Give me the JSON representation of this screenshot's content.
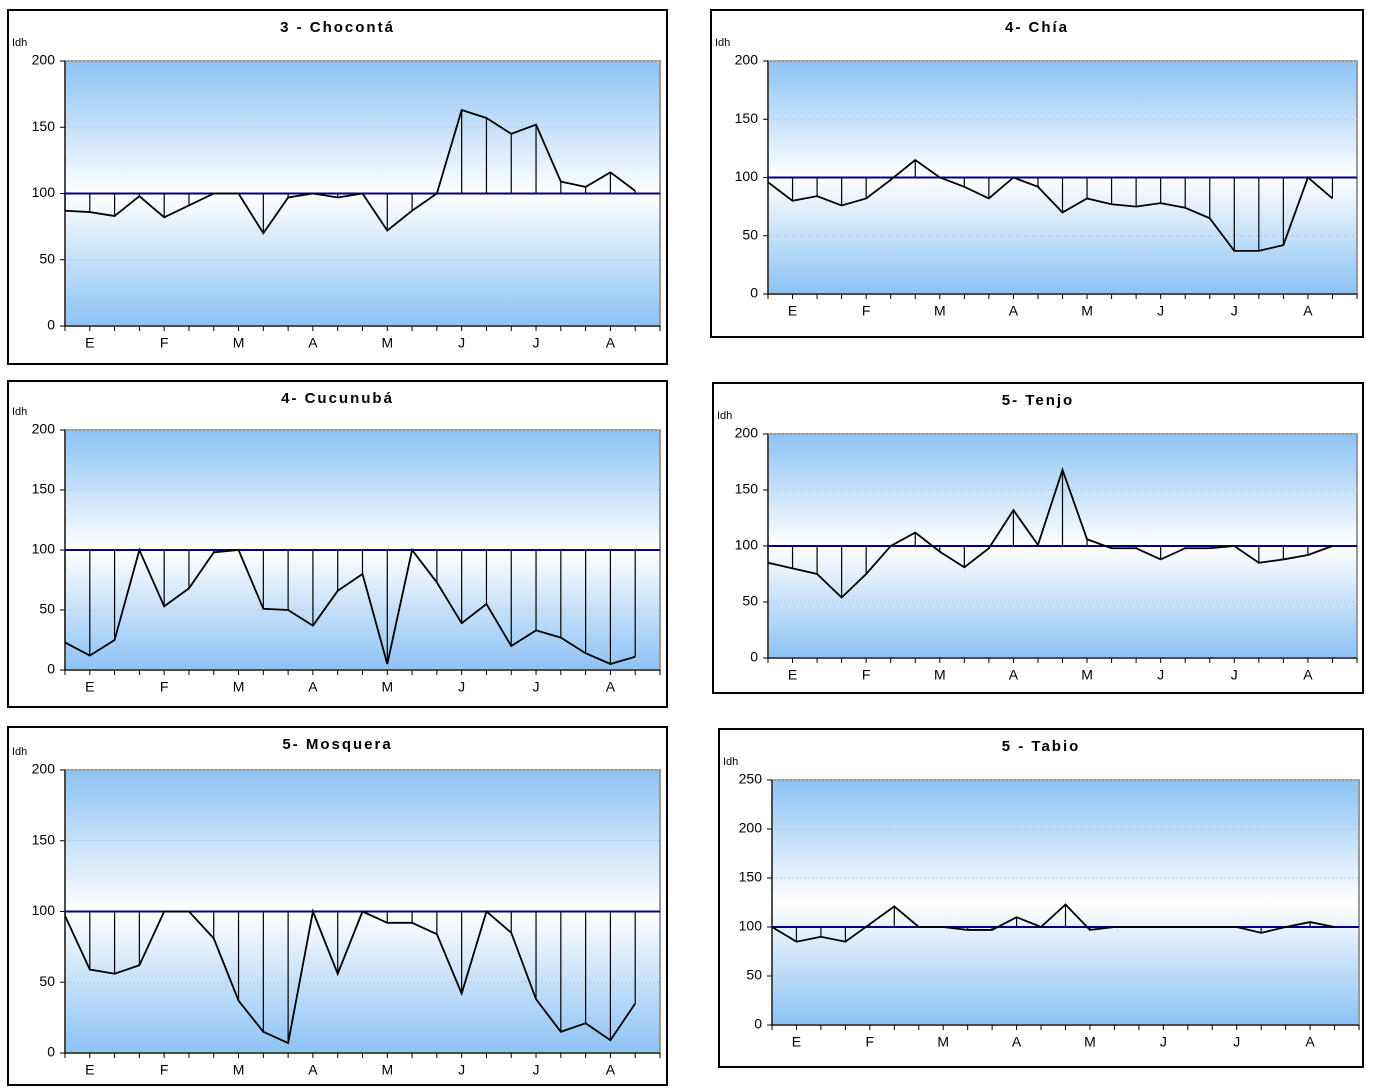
{
  "chart_data": [
    {
      "type": "line",
      "title": "3 - Chocontá",
      "y_label": "Idh",
      "categories": [
        null,
        "E",
        null,
        null,
        "F",
        null,
        null,
        "M",
        null,
        null,
        "A",
        null,
        null,
        "M",
        null,
        null,
        "J",
        null,
        null,
        "J",
        null,
        null,
        "A",
        null
      ],
      "values": [
        87,
        86,
        83,
        98,
        82,
        91,
        100,
        100,
        70,
        97,
        100,
        97,
        100,
        72,
        87,
        100,
        163,
        157,
        145,
        152,
        109,
        105,
        116,
        102
      ],
      "reference": 100,
      "color": "#000000",
      "reference_color": "#000080",
      "ylim": [
        0,
        200
      ],
      "yticks": [
        0,
        50,
        100,
        150,
        200
      ],
      "grid": true
    },
    {
      "type": "line",
      "title": "4- Chía",
      "y_label": "Idh",
      "categories": [
        null,
        "E",
        null,
        null,
        "F",
        null,
        null,
        "M",
        null,
        null,
        "A",
        null,
        null,
        "M",
        null,
        null,
        "J",
        null,
        null,
        "J",
        null,
        null,
        "A",
        null
      ],
      "values": [
        96,
        80,
        84,
        76,
        82,
        98,
        115,
        100,
        92,
        82,
        100,
        92,
        70,
        82,
        77,
        75,
        78,
        74,
        65,
        37,
        37,
        42,
        100,
        82
      ],
      "reference": 100,
      "color": "#000000",
      "reference_color": "#000080",
      "ylim": [
        0,
        200
      ],
      "yticks": [
        0,
        50,
        100,
        150,
        200
      ],
      "grid": true
    },
    {
      "type": "line",
      "title": "4- Cucunubá",
      "y_label": "Idh",
      "categories": [
        null,
        "E",
        null,
        null,
        "F",
        null,
        null,
        "M",
        null,
        null,
        "A",
        null,
        null,
        "M",
        null,
        null,
        "J",
        null,
        null,
        "J",
        null,
        null,
        "A",
        null
      ],
      "values": [
        23,
        12,
        25,
        100,
        53,
        68,
        98,
        100,
        51,
        50,
        37,
        66,
        80,
        5,
        100,
        73,
        39,
        55,
        20,
        33,
        27,
        14,
        5,
        11
      ],
      "reference": 100,
      "color": "#000000",
      "reference_color": "#000080",
      "ylim": [
        0,
        200
      ],
      "yticks": [
        0,
        50,
        100,
        150,
        200
      ],
      "grid": true
    },
    {
      "type": "line",
      "title": "5- Tenjo",
      "y_label": "Idh",
      "categories": [
        null,
        "E",
        null,
        null,
        "F",
        null,
        null,
        "M",
        null,
        null,
        "A",
        null,
        null,
        "M",
        null,
        null,
        "J",
        null,
        null,
        "J",
        null,
        null,
        "A",
        null
      ],
      "values": [
        85,
        80,
        75,
        54,
        75,
        100,
        112,
        95,
        81,
        98,
        132,
        101,
        168,
        106,
        98,
        98,
        88,
        98,
        98,
        100,
        85,
        88,
        92,
        100
      ],
      "reference": 100,
      "color": "#000000",
      "reference_color": "#000080",
      "ylim": [
        0,
        200
      ],
      "yticks": [
        0,
        50,
        100,
        150,
        200
      ],
      "grid": true
    },
    {
      "type": "line",
      "title": "5- Mosquera",
      "y_label": "Idh",
      "categories": [
        null,
        "E",
        null,
        null,
        "F",
        null,
        null,
        "M",
        null,
        null,
        "A",
        null,
        null,
        "M",
        null,
        null,
        "J",
        null,
        null,
        "J",
        null,
        null,
        "A",
        null
      ],
      "values": [
        97,
        59,
        56,
        62,
        100,
        100,
        81,
        37,
        15,
        7,
        100,
        56,
        100,
        92,
        92,
        84,
        42,
        100,
        85,
        38,
        15,
        21,
        9,
        35
      ],
      "reference": 100,
      "color": "#000000",
      "reference_color": "#000080",
      "ylim": [
        0,
        200
      ],
      "yticks": [
        0,
        50,
        100,
        150,
        200
      ],
      "grid": true
    },
    {
      "type": "line",
      "title": "5 - Tabio",
      "y_label": "Idh",
      "categories": [
        null,
        "E",
        null,
        null,
        "F",
        null,
        null,
        "M",
        null,
        null,
        "A",
        null,
        null,
        "M",
        null,
        null,
        "J",
        null,
        null,
        "J",
        null,
        null,
        "A",
        null
      ],
      "values": [
        100,
        85,
        90,
        85,
        103,
        121,
        100,
        100,
        97,
        97,
        110,
        100,
        123,
        97,
        100,
        100,
        100,
        100,
        100,
        100,
        94,
        100,
        105,
        100
      ],
      "reference": 100,
      "color": "#000000",
      "reference_color": "#000080",
      "ylim": [
        0,
        250
      ],
      "yticks": [
        0,
        50,
        100,
        150,
        200,
        250
      ],
      "grid": true
    }
  ]
}
